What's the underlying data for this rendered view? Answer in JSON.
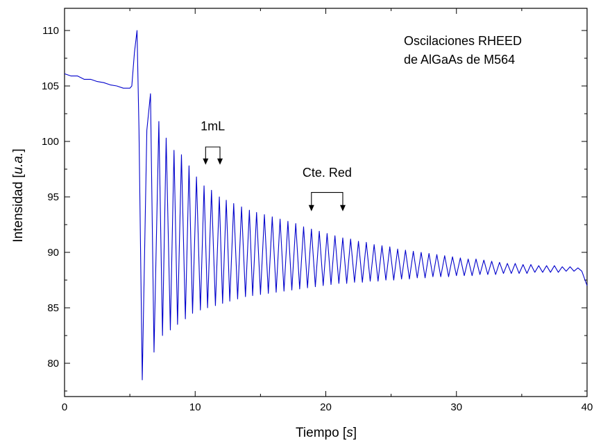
{
  "chart_data": {
    "type": "line",
    "title": "",
    "annotation_title": [
      "Oscilaciones RHEED",
      "de AlGaAs de M564"
    ],
    "xlabel": {
      "main": "Tiempo [",
      "italic": "s",
      "end": "]"
    },
    "ylabel": {
      "main": "Intensidad [",
      "italic": "u.a.",
      "end": "]"
    },
    "xlim": [
      0,
      40
    ],
    "ylim": [
      77,
      112
    ],
    "x_ticks": [
      0,
      10,
      20,
      30,
      40
    ],
    "y_ticks": [
      80,
      85,
      90,
      95,
      100,
      105,
      110
    ],
    "x_tick_labels": [
      "0",
      "10",
      "20",
      "30",
      "40"
    ],
    "y_tick_labels": [
      "80",
      "85",
      "90",
      "95",
      "100",
      "105",
      "110"
    ],
    "grid": false,
    "series_color": "#0000cc",
    "series": [
      {
        "x": [
          0,
          0.5,
          1.0,
          1.5,
          2.0,
          2.5,
          3.0,
          3.5,
          4.0,
          4.5,
          5.0,
          5.15,
          5.35,
          5.55,
          5.7,
          5.95,
          6.3,
          6.58,
          6.85,
          7.22,
          7.5,
          7.78,
          8.1,
          8.38,
          8.65,
          8.95,
          9.25,
          9.53,
          9.8,
          10.1,
          10.4,
          10.68,
          10.95,
          11.25,
          11.55,
          11.85,
          12.1,
          12.38,
          12.65,
          12.95,
          13.25,
          13.55,
          13.85,
          14.15,
          14.4,
          14.7,
          15.0,
          15.3,
          15.6,
          15.9,
          16.2,
          16.5,
          16.8,
          17.1,
          17.4,
          17.7,
          18.0,
          18.3,
          18.6,
          18.9,
          19.2,
          19.5,
          19.8,
          20.1,
          20.4,
          20.7,
          21.0,
          21.3,
          21.6,
          21.9,
          22.2,
          22.5,
          22.8,
          23.1,
          23.4,
          23.7,
          24.0,
          24.3,
          24.6,
          24.9,
          25.2,
          25.5,
          25.8,
          26.1,
          26.4,
          26.7,
          27.0,
          27.3,
          27.6,
          27.9,
          28.2,
          28.5,
          28.8,
          29.1,
          29.4,
          29.7,
          30.0,
          30.3,
          30.6,
          30.9,
          31.2,
          31.5,
          31.8,
          32.1,
          32.4,
          32.7,
          33.0,
          33.3,
          33.6,
          33.9,
          34.2,
          34.5,
          34.8,
          35.1,
          35.4,
          35.7,
          36.0,
          36.3,
          36.6,
          36.9,
          37.2,
          37.5,
          37.8,
          38.1,
          38.4,
          38.7,
          39.0,
          39.3,
          39.6,
          40.0
        ],
        "y": [
          106.1,
          105.9,
          105.9,
          105.6,
          105.6,
          105.4,
          105.3,
          105.1,
          105.0,
          104.8,
          104.8,
          105.0,
          108.0,
          110.0,
          101.0,
          78.5,
          101.0,
          104.3,
          81.0,
          101.8,
          82.5,
          100.3,
          83.0,
          99.2,
          83.5,
          98.8,
          84.0,
          97.8,
          84.5,
          96.8,
          84.8,
          96.0,
          85.0,
          95.6,
          85.2,
          95.0,
          85.4,
          94.7,
          85.6,
          94.4,
          85.8,
          94.1,
          86.0,
          93.8,
          86.1,
          93.6,
          86.2,
          93.4,
          86.3,
          93.2,
          86.4,
          93.0,
          86.5,
          92.8,
          86.6,
          92.6,
          86.7,
          92.3,
          86.8,
          92.1,
          86.9,
          91.9,
          87.0,
          91.7,
          87.1,
          91.5,
          87.2,
          91.3,
          87.2,
          91.2,
          87.3,
          91.0,
          87.3,
          90.9,
          87.4,
          90.7,
          87.4,
          90.6,
          87.5,
          90.5,
          87.5,
          90.3,
          87.6,
          90.2,
          87.6,
          90.1,
          87.7,
          90.0,
          87.7,
          89.9,
          87.8,
          89.8,
          87.8,
          89.7,
          87.8,
          89.6,
          87.9,
          89.5,
          87.9,
          89.4,
          87.9,
          89.4,
          88.0,
          89.3,
          88.0,
          89.2,
          88.0,
          89.1,
          88.1,
          89.0,
          88.1,
          89.0,
          88.1,
          88.9,
          88.1,
          88.9,
          88.2,
          88.8,
          88.2,
          88.8,
          88.2,
          88.8,
          88.2,
          88.7,
          88.3,
          88.7,
          88.3,
          88.6,
          88.3,
          87.0
        ]
      }
    ],
    "annotations": [
      {
        "label": "1mL",
        "x1": 10.8,
        "x2": 11.9,
        "bracket_y": 99.5,
        "arrow_y": 97.9,
        "text_y": 101.0
      },
      {
        "label": "Cte. Red",
        "x1": 18.9,
        "x2": 21.3,
        "bracket_y": 95.4,
        "arrow_y": 93.7,
        "text_y": 96.8
      }
    ]
  }
}
